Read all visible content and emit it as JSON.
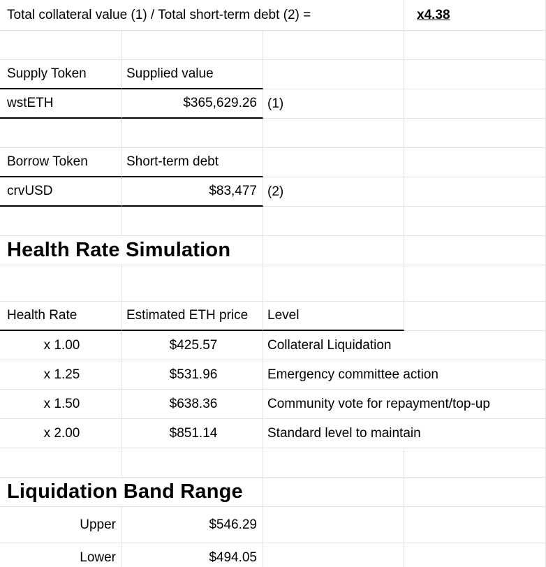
{
  "summary": {
    "formula_label": "Total collateral value (1) / Total short-term debt (2) =",
    "ratio_value": "x4.38"
  },
  "supply": {
    "header_token": "Supply Token",
    "header_value": "Supplied value",
    "token": "wstETH",
    "value": "$365,629.26",
    "ref": "(1)"
  },
  "borrow": {
    "header_token": "Borrow Token",
    "header_value": "Short-term debt",
    "token": "crvUSD",
    "value": "$83,477",
    "ref": "(2)"
  },
  "health": {
    "title": "Health Rate Simulation",
    "headers": {
      "rate": "Health Rate",
      "price": "Estimated ETH price",
      "level": "Level"
    },
    "rows": [
      {
        "rate": "x 1.00",
        "price": "$425.57",
        "level": "Collateral Liquidation"
      },
      {
        "rate": "x 1.25",
        "price": "$531.96",
        "level": "Emergency committee action"
      },
      {
        "rate": "x 1.50",
        "price": "$638.36",
        "level": "Community vote for repayment/top-up"
      },
      {
        "rate": "x 2.00",
        "price": "$851.14",
        "level": "Standard level to maintain"
      }
    ]
  },
  "band": {
    "title": "Liquidation Band Range",
    "upper_label": "Upper",
    "upper_value": "$546.29",
    "lower_label": "Lower",
    "lower_value": "$494.05"
  }
}
